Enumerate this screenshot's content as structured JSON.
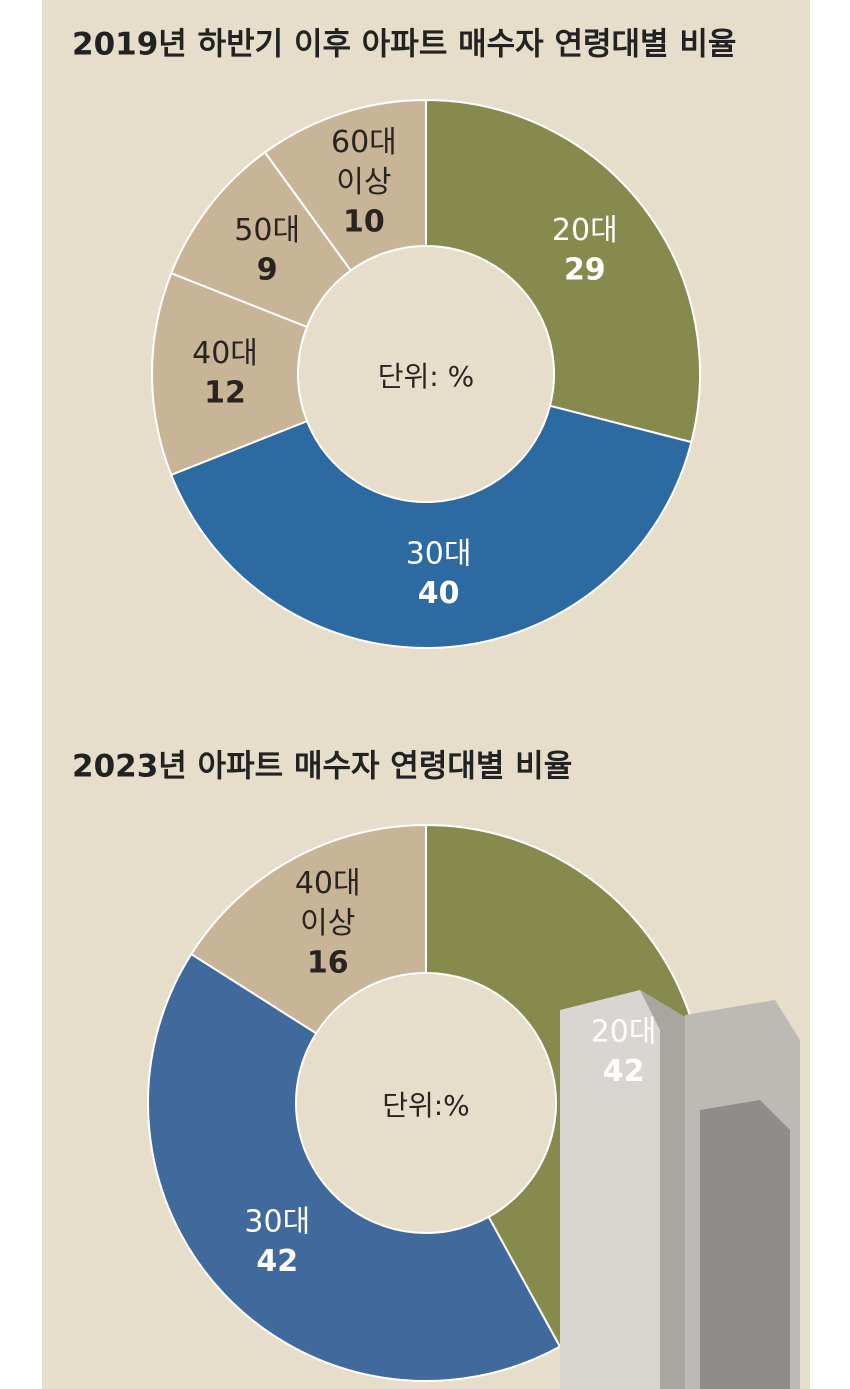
{
  "chart_data": [
    {
      "type": "pie",
      "title": "2019년 하반기 이후 아파트 매수자 연령대별 비율",
      "annotation": "단위: %",
      "categories": [
        "20대",
        "30대",
        "40대",
        "50대",
        "60대 이상"
      ],
      "values": [
        29,
        40,
        12,
        9,
        10
      ],
      "colors": [
        "#868a4c",
        "#2e6aa2",
        "#c8b598",
        "#c8b598",
        "#c8b598"
      ]
    },
    {
      "type": "pie",
      "title": "2023년 아파트 매수자 연령대별 비율",
      "annotation": "단위:%",
      "categories": [
        "20대",
        "30대",
        "40대 이상"
      ],
      "values": [
        42,
        42,
        16
      ],
      "colors": [
        "#868a4c",
        "#416a9c",
        "#c8b598"
      ]
    }
  ]
}
